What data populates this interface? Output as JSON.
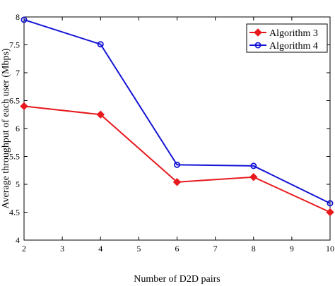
{
  "chart_data": {
    "type": "line",
    "title": "",
    "xlabel": "Number of D2D pairs",
    "ylabel": "Average throughput of each user (Mbps)",
    "xlim": [
      2,
      10
    ],
    "ylim": [
      4,
      8
    ],
    "x_ticks": [
      "2",
      "3",
      "4",
      "5",
      "6",
      "7",
      "8",
      "9",
      "10"
    ],
    "y_ticks": [
      "4",
      "4.5",
      "5",
      "5.5",
      "6",
      "6.5",
      "7",
      "7.5",
      "8"
    ],
    "grid": false,
    "legend_position": "top-right",
    "x": [
      2,
      4,
      6,
      8,
      10
    ],
    "series": [
      {
        "name": "Algorithm 3",
        "color": "#e8191c",
        "marker": "diamond",
        "values": [
          6.4,
          6.25,
          5.04,
          5.13,
          4.5
        ]
      },
      {
        "name": "Algorithm 4",
        "color": "#1414d6",
        "marker": "circle",
        "values": [
          7.95,
          7.51,
          5.35,
          5.33,
          4.66
        ]
      }
    ]
  }
}
